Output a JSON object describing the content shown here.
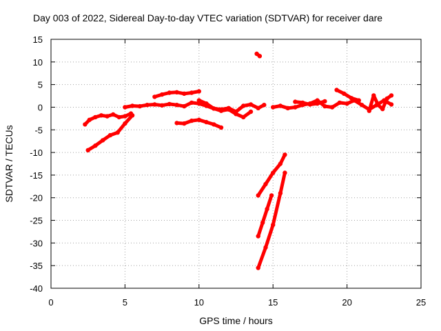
{
  "chart_data": {
    "type": "scatter",
    "title": "Day 003 of 2022, Sidereal Day-to-day VTEC variation (SDTVAR) for receiver dare",
    "xlabel": "GPS time / hours",
    "ylabel": "SDTVAR / TECUs",
    "xlim": [
      0,
      25
    ],
    "ylim": [
      -40,
      15
    ],
    "xticks": [
      0,
      5,
      10,
      15,
      20,
      25
    ],
    "yticks": [
      -40,
      -35,
      -30,
      -25,
      -20,
      -15,
      -10,
      -5,
      0,
      5,
      10,
      15
    ],
    "grid": true,
    "color": "#ff0000",
    "series": [
      {
        "x": [
          2.3,
          2.6,
          3.0,
          3.4,
          3.8,
          4.2,
          4.6,
          5.0,
          5.4
        ],
        "y": [
          -3.8,
          -2.8,
          -2.2,
          -1.8,
          -2.0,
          -1.6,
          -2.2,
          -2.0,
          -1.4
        ]
      },
      {
        "x": [
          2.5,
          3.0,
          3.5,
          4.0,
          4.5,
          5.0,
          5.5
        ],
        "y": [
          -9.5,
          -8.5,
          -7.3,
          -6.2,
          -5.6,
          -3.6,
          -1.8
        ]
      },
      {
        "x": [
          5.0,
          5.5,
          6.0,
          6.5,
          7.0,
          7.5,
          8.0,
          8.5,
          9.0,
          9.5,
          10.0,
          10.5,
          11.0,
          11.5,
          12.0,
          12.5,
          13.0,
          13.5,
          14.0,
          14.4
        ],
        "y": [
          0.0,
          0.3,
          0.2,
          0.5,
          0.6,
          0.4,
          0.7,
          0.5,
          0.2,
          1.0,
          0.8,
          0.3,
          -0.3,
          -0.5,
          -0.2,
          -1.0,
          0.3,
          0.6,
          -0.2,
          0.5
        ]
      },
      {
        "x": [
          7.0,
          7.5,
          8.0,
          8.5,
          9.0,
          9.5,
          10.0
        ],
        "y": [
          2.3,
          2.8,
          3.2,
          3.3,
          3.0,
          3.2,
          3.5
        ]
      },
      {
        "x": [
          8.5,
          9.0,
          9.5,
          10.0,
          10.5,
          11.0,
          11.5
        ],
        "y": [
          -3.5,
          -3.6,
          -3.0,
          -2.8,
          -3.3,
          -3.8,
          -4.5
        ]
      },
      {
        "x": [
          10.0,
          10.5,
          11.0,
          11.5,
          12.0,
          12.5,
          13.0,
          13.5
        ],
        "y": [
          1.5,
          0.8,
          -0.3,
          -0.8,
          -0.5,
          -1.5,
          -2.2,
          -1.0
        ]
      },
      {
        "x": [
          13.9,
          14.1
        ],
        "y": [
          11.8,
          11.3
        ]
      },
      {
        "x": [
          14.0,
          14.5,
          15.0,
          15.5,
          15.8
        ],
        "y": [
          -19.5,
          -17.0,
          -14.5,
          -12.5,
          -10.5
        ]
      },
      {
        "x": [
          14.0,
          14.3,
          14.6,
          14.9
        ],
        "y": [
          -28.5,
          -25.5,
          -22.5,
          -19.5
        ]
      },
      {
        "x": [
          14.0,
          14.5,
          15.0,
          15.5,
          15.8
        ],
        "y": [
          -35.5,
          -31.0,
          -26.0,
          -19.0,
          -14.5
        ]
      },
      {
        "x": [
          15.0,
          15.5,
          16.0,
          16.5,
          17.0,
          17.5,
          18.0,
          18.5,
          19.0,
          19.5,
          20.0,
          20.5,
          21.0,
          21.5,
          22.0,
          22.5,
          23.0
        ],
        "y": [
          0.0,
          0.3,
          -0.2,
          0.0,
          0.5,
          0.8,
          1.5,
          0.2,
          0.0,
          1.0,
          0.8,
          1.5,
          0.5,
          -0.5,
          0.5,
          1.5,
          0.6
        ]
      },
      {
        "x": [
          16.5,
          17.0,
          17.5,
          18.0,
          18.5
        ],
        "y": [
          1.2,
          1.0,
          0.6,
          0.8,
          1.3
        ]
      },
      {
        "x": [
          19.3,
          19.8,
          20.3,
          20.8
        ],
        "y": [
          3.8,
          3.0,
          2.0,
          1.5
        ]
      },
      {
        "x": [
          21.5,
          21.8,
          22.1,
          22.4,
          22.7,
          23.0
        ],
        "y": [
          -0.8,
          2.6,
          0.5,
          -0.4,
          1.9,
          2.6
        ]
      }
    ]
  }
}
